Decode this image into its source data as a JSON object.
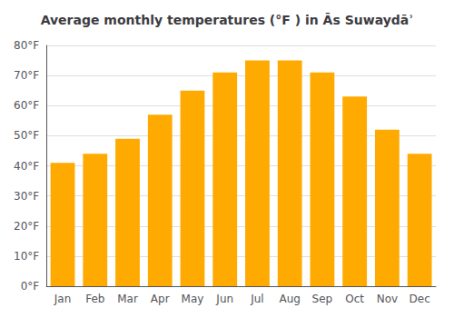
{
  "chart_data": {
    "type": "bar",
    "title": "Average monthly temperatures (°F ) in Ās Suwaydāʾ",
    "categories": [
      "Jan",
      "Feb",
      "Mar",
      "Apr",
      "May",
      "Jun",
      "Jul",
      "Aug",
      "Sep",
      "Oct",
      "Nov",
      "Dec"
    ],
    "values": [
      41,
      44,
      49,
      57,
      65,
      71,
      75,
      75,
      71,
      63,
      52,
      44
    ],
    "color": "#FFAA00",
    "ylim": [
      0,
      80
    ],
    "yticks": [
      {
        "value": 0,
        "label": "0°F"
      },
      {
        "value": 10,
        "label": "10°F"
      },
      {
        "value": 20,
        "label": "20°F"
      },
      {
        "value": 30,
        "label": "30°F"
      },
      {
        "value": 40,
        "label": "40°F"
      },
      {
        "value": 50,
        "label": "50°F"
      },
      {
        "value": 60,
        "label": "60°F"
      },
      {
        "value": 70,
        "label": "70°F"
      },
      {
        "value": 80,
        "label": "80°F"
      }
    ],
    "grid": true
  }
}
